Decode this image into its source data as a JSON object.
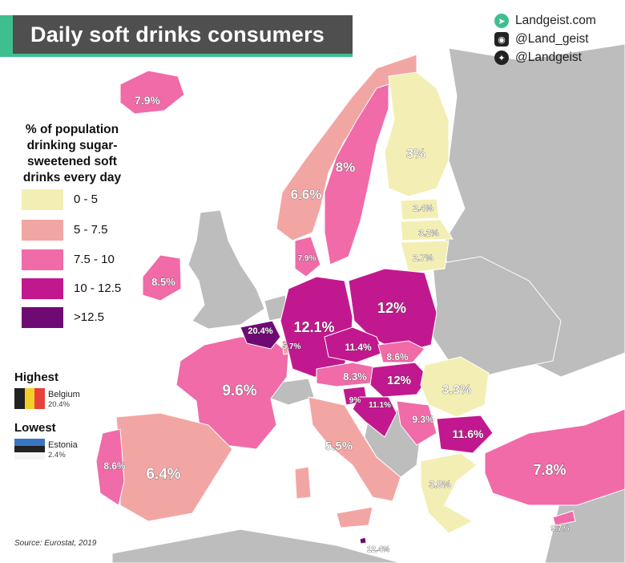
{
  "title": "Daily soft drinks consumers",
  "brand": {
    "site": "Landgeist.com",
    "instagram": "@Land_geist",
    "twitter": "@Landgeist"
  },
  "icons": {
    "site": "landgeist-logo-icon",
    "instagram": "instagram-icon",
    "twitter": "twitter-icon"
  },
  "legend": {
    "title": "% of population drinking sugar-sweetened soft drinks every day",
    "title_lines": [
      "% of population",
      "drinking sugar-",
      "sweetened soft",
      "drinks every day"
    ],
    "items": [
      {
        "label": "0  -  5",
        "color": "#f3efb4"
      },
      {
        "label": "5  -  7.5",
        "color": "#f2a6a4"
      },
      {
        "label": "7.5 -  10",
        "color": "#f06ba8"
      },
      {
        "label": "10  - 12.5",
        "color": "#c2188f"
      },
      {
        "label": ">12.5",
        "color": "#6f0a74"
      }
    ]
  },
  "highest": {
    "heading": "Highest",
    "country": "Belgium",
    "value": "20.4%"
  },
  "lowest": {
    "heading": "Lowest",
    "country": "Estonia",
    "value": "2.4%"
  },
  "source": "Source: Eurostat, 2019",
  "countries": [
    {
      "name": "Iceland",
      "value": "7.9%"
    },
    {
      "name": "Norway",
      "value": "6.6%"
    },
    {
      "name": "Sweden",
      "value": "8%"
    },
    {
      "name": "Finland",
      "value": "3%"
    },
    {
      "name": "Estonia",
      "value": "2.4%"
    },
    {
      "name": "Latvia",
      "value": "3.2%"
    },
    {
      "name": "Lithuania",
      "value": "2.7%"
    },
    {
      "name": "Denmark",
      "value": "7.9%"
    },
    {
      "name": "Ireland",
      "value": "8.5%"
    },
    {
      "name": "Belgium",
      "value": "20.4%"
    },
    {
      "name": "Luxembourg",
      "value": "5.7%"
    },
    {
      "name": "Germany",
      "value": "12.1%"
    },
    {
      "name": "Poland",
      "value": "12%"
    },
    {
      "name": "Czechia",
      "value": "11.4%"
    },
    {
      "name": "Slovakia",
      "value": "8.6%"
    },
    {
      "name": "Austria",
      "value": "8.3%"
    },
    {
      "name": "Hungary",
      "value": "12%"
    },
    {
      "name": "Slovenia",
      "value": "9%"
    },
    {
      "name": "Croatia",
      "value": "11.1%"
    },
    {
      "name": "Romania",
      "value": "3.3%"
    },
    {
      "name": "Serbia",
      "value": "9.3%"
    },
    {
      "name": "Bulgaria",
      "value": "11.6%"
    },
    {
      "name": "France",
      "value": "9.6%"
    },
    {
      "name": "Italy",
      "value": "5.5%"
    },
    {
      "name": "Spain",
      "value": "6.4%"
    },
    {
      "name": "Portugal",
      "value": "8.6%"
    },
    {
      "name": "Greece",
      "value": "3.8%"
    },
    {
      "name": "Turkey",
      "value": "7.8%"
    },
    {
      "name": "Cyprus",
      "value": "9.7%"
    },
    {
      "name": "Malta",
      "value": "12.4%"
    }
  ]
}
